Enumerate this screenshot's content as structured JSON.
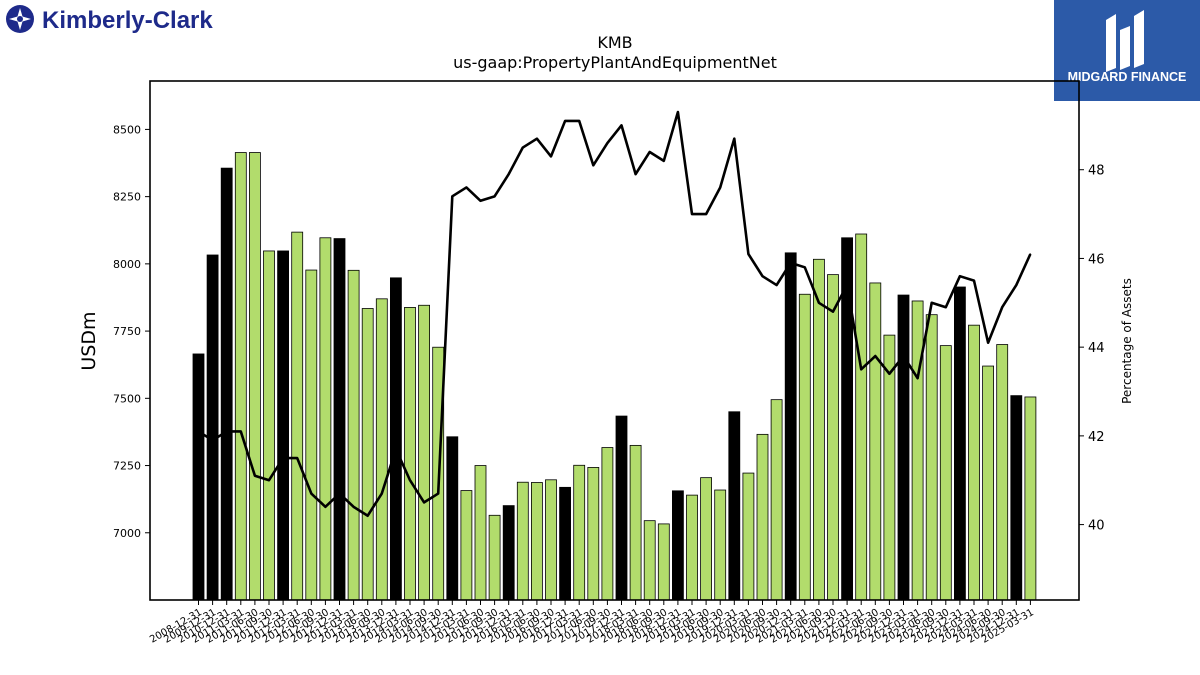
{
  "branding": {
    "company_logo_text": "Kimberly-Clark",
    "publisher_logo_text": "MIDGARD FINANCE",
    "publisher_color": "#2c5aa8"
  },
  "chart_data": {
    "type": "bar+line",
    "title": "KMB",
    "subtitle": "us-gaap:PropertyPlantAndEquipmentNet",
    "ylabel": "USDm",
    "y2label": "Percentage of Assets",
    "ylim": [
      6750,
      8680
    ],
    "y2lim": [
      38.3,
      50.0
    ],
    "yticks": [
      7000,
      7250,
      7500,
      7750,
      8000,
      8250,
      8500
    ],
    "y2ticks": [
      40,
      42,
      44,
      46,
      48
    ],
    "colors": {
      "annual_bar": "#000000",
      "quarter_bar": "#b2dc6c",
      "line": "#000000"
    },
    "categories": [
      "2008-12-31",
      "2009-12-31",
      "2010-12-31",
      "2011-03-31",
      "2011-06-30",
      "2011-09-30",
      "2011-12-31",
      "2012-03-31",
      "2012-06-30",
      "2012-09-30",
      "2012-12-31",
      "2013-03-31",
      "2013-06-30",
      "2013-09-30",
      "2013-12-31",
      "2014-03-31",
      "2014-06-30",
      "2014-09-30",
      "2014-12-31",
      "2015-03-31",
      "2015-06-30",
      "2015-09-30",
      "2015-12-31",
      "2016-03-31",
      "2016-06-30",
      "2016-09-30",
      "2016-12-31",
      "2017-03-31",
      "2017-06-30",
      "2017-09-30",
      "2017-12-31",
      "2018-03-31",
      "2018-06-30",
      "2018-09-30",
      "2018-12-31",
      "2019-03-31",
      "2019-06-30",
      "2019-09-30",
      "2019-12-31",
      "2020-03-31",
      "2020-06-30",
      "2020-09-30",
      "2020-12-31",
      "2021-03-31",
      "2021-06-30",
      "2021-09-30",
      "2021-12-31",
      "2022-03-31",
      "2022-06-30",
      "2022-09-30",
      "2022-12-31",
      "2023-03-31",
      "2023-06-30",
      "2023-09-30",
      "2023-12-31",
      "2024-03-31",
      "2024-06-30",
      "2024-09-30",
      "2024-12-31",
      "2025-03-31"
    ],
    "series": [
      {
        "values": [
          7665,
          8033,
          8356,
          8414,
          8414,
          8048,
          8048,
          8118,
          7977,
          8097,
          8094,
          7976,
          7834,
          7870,
          7948,
          7838,
          7846,
          7690,
          7357,
          7157,
          7250,
          7065,
          7101,
          7188,
          7187,
          7197,
          7169,
          7251,
          7243,
          7317,
          7434,
          7325,
          7045,
          7033,
          7156,
          7140,
          7205,
          7159,
          7450,
          7222,
          7366,
          7495,
          8041,
          7887,
          8017,
          7960,
          8097,
          8111,
          7929,
          7735,
          7884,
          7862,
          7811,
          7696,
          7914,
          7772,
          7620,
          7700,
          7510,
          7505
        ],
        "annual": [
          true,
          true,
          true,
          false,
          false,
          false,
          true,
          false,
          false,
          false,
          true,
          false,
          false,
          false,
          true,
          false,
          false,
          false,
          true,
          false,
          false,
          false,
          true,
          false,
          false,
          false,
          true,
          false,
          false,
          false,
          true,
          false,
          false,
          false,
          true,
          false,
          false,
          false,
          true,
          false,
          false,
          false,
          true,
          false,
          false,
          false,
          true,
          false,
          false,
          false,
          true,
          false,
          false,
          false,
          true,
          false,
          false,
          false,
          true,
          false
        ]
      },
      {
        "axis": "right",
        "values": [
          42.1,
          41.9,
          42.1,
          42.1,
          41.1,
          41.0,
          41.5,
          41.5,
          40.7,
          40.4,
          40.7,
          40.4,
          40.2,
          40.7,
          41.7,
          41.0,
          40.5,
          40.7,
          47.4,
          47.6,
          47.3,
          47.4,
          47.9,
          48.5,
          48.7,
          48.3,
          49.1,
          49.1,
          48.1,
          48.6,
          49.0,
          47.9,
          48.4,
          48.2,
          49.3,
          47.0,
          47.0,
          47.6,
          48.7,
          46.1,
          45.6,
          45.4,
          45.9,
          45.8,
          45.0,
          44.8,
          45.4,
          43.5,
          43.8,
          43.4,
          43.8,
          43.3,
          45.0,
          44.9,
          45.6,
          45.5,
          44.1,
          44.9,
          45.4,
          46.1
        ]
      }
    ]
  }
}
